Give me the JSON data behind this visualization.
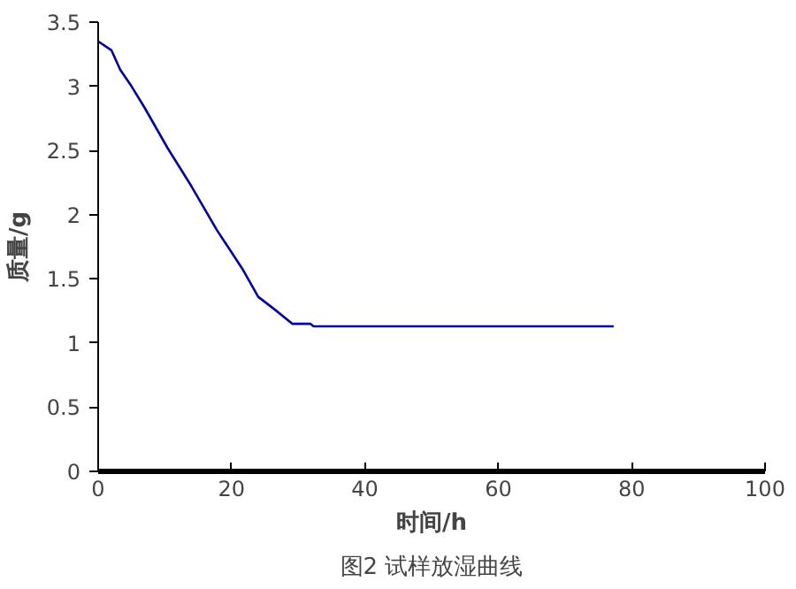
{
  "chart_data": {
    "type": "line",
    "title": "图2 试样放湿曲线",
    "xlabel": "时间/h",
    "ylabel": "质量/g",
    "x": [
      0,
      2,
      3.3,
      5,
      7,
      10.4,
      14,
      17.8,
      21.6,
      24,
      26.5,
      29.1,
      31.8,
      32.3,
      77.3
    ],
    "series": [
      {
        "color": "#0000a0",
        "values": [
          3.35,
          3.28,
          3.13,
          3.0,
          2.83,
          2.52,
          2.22,
          1.88,
          1.58,
          1.36,
          1.26,
          1.15,
          1.15,
          1.13,
          1.13
        ]
      }
    ],
    "xlim": [
      0,
      100
    ],
    "xticks": [
      0,
      20,
      40,
      60,
      80,
      100
    ],
    "ylim": [
      0,
      3.5
    ],
    "yticks": [
      0,
      0.5,
      1,
      1.5,
      2,
      2.5,
      3,
      3.5
    ],
    "grid": false,
    "marker": "none",
    "line_style": "solid"
  }
}
